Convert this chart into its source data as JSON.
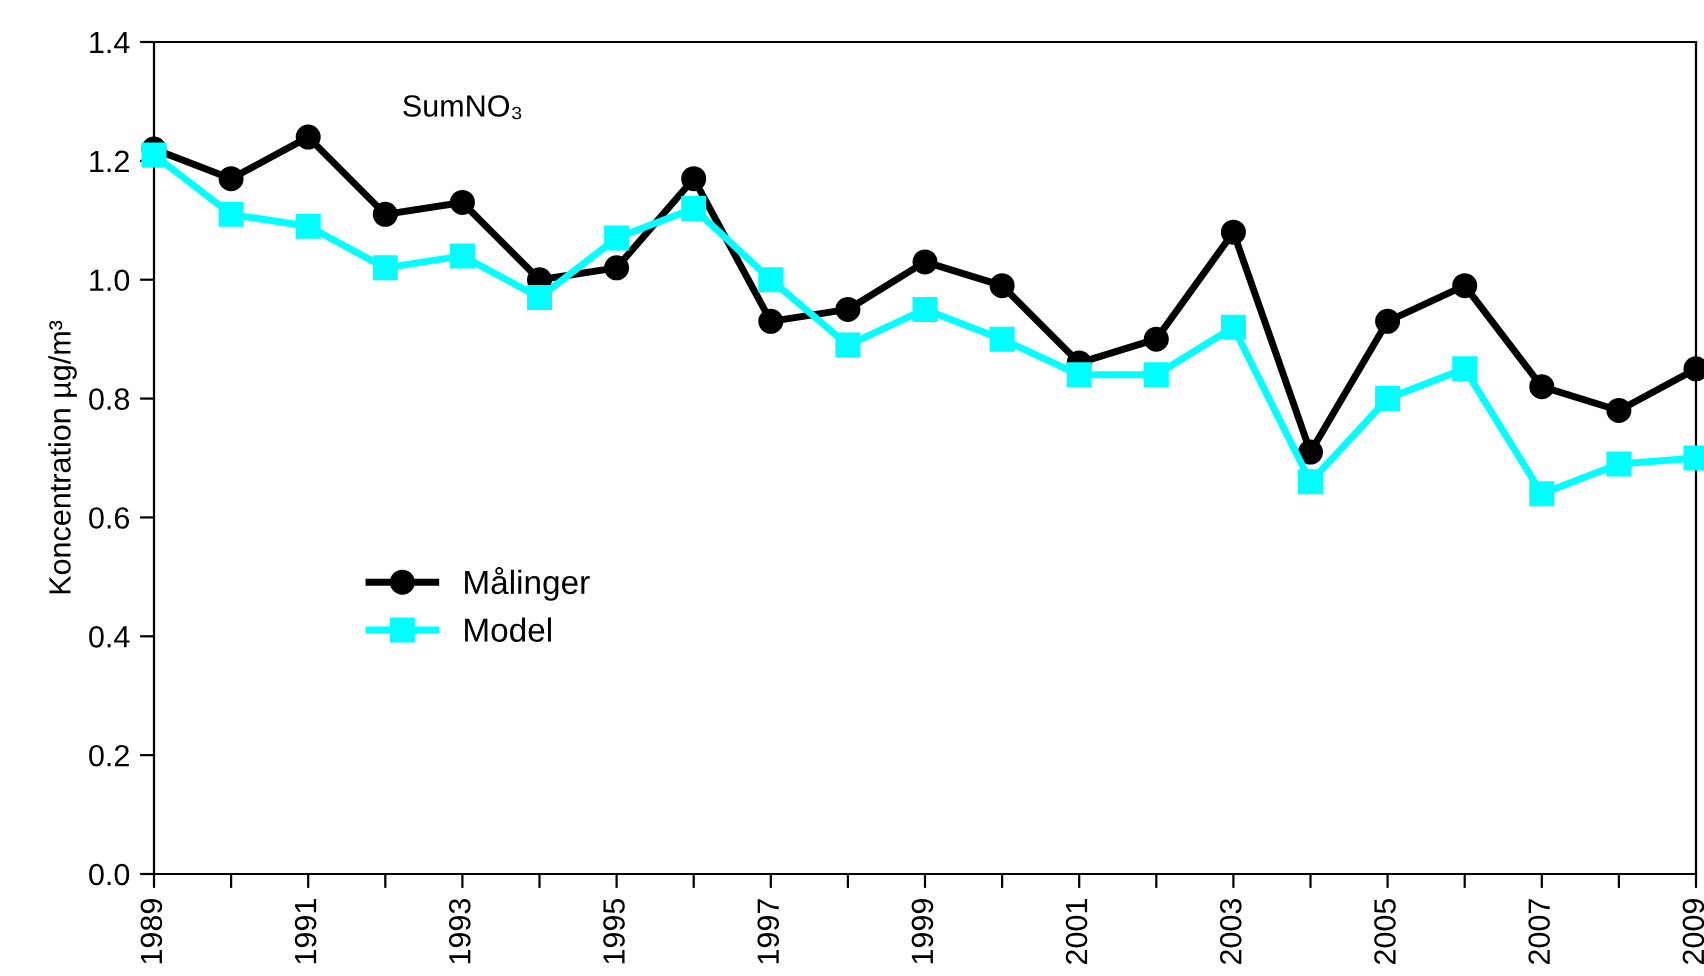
{
  "chart_data": {
    "type": "line",
    "x": [
      1989,
      1990,
      1991,
      1992,
      1993,
      1994,
      1995,
      1996,
      1997,
      1998,
      1999,
      2000,
      2001,
      2002,
      2003,
      2004,
      2005,
      2006,
      2007,
      2008,
      2009
    ],
    "series": [
      {
        "name": "Målinger",
        "color": "#000000",
        "marker": "circle",
        "values": [
          1.22,
          1.17,
          1.24,
          1.11,
          1.13,
          1.0,
          1.02,
          1.17,
          0.93,
          0.95,
          1.03,
          0.99,
          0.86,
          0.9,
          1.08,
          0.71,
          0.93,
          0.99,
          0.82,
          0.78,
          0.85
        ]
      },
      {
        "name": "Model",
        "color": "#00ffff",
        "marker": "square",
        "values": [
          1.21,
          1.11,
          1.09,
          1.02,
          1.04,
          0.97,
          1.07,
          1.12,
          1.0,
          0.89,
          0.95,
          0.9,
          0.84,
          0.84,
          0.92,
          0.66,
          0.8,
          0.85,
          0.64,
          0.69,
          0.7
        ]
      }
    ],
    "ylabel": "Koncentration µg/m³",
    "annotations": [
      "SumNO₃"
    ],
    "xlim": [
      1989,
      2009
    ],
    "xticks": [
      1989,
      {
        "value": 1990,
        "label": null
      },
      1991,
      {
        "value": 1992,
        "label": null
      },
      1993,
      {
        "value": 1994,
        "label": null
      },
      1995,
      {
        "value": 1996,
        "label": null
      },
      1997,
      {
        "value": 1998,
        "label": null
      },
      1999,
      {
        "value": 2000,
        "label": null
      },
      2001,
      {
        "value": 2002,
        "label": null
      },
      2003,
      {
        "value": 2004,
        "label": null
      },
      2005,
      {
        "value": 2006,
        "label": null
      },
      2007,
      {
        "value": 2008,
        "label": null
      },
      2009
    ],
    "ylim": [
      0,
      1.4
    ],
    "yticks": [
      {
        "value": 0,
        "label": "0.0"
      },
      0.2,
      0.4,
      0.6,
      0.8,
      {
        "value": 1,
        "label": "1.0"
      },
      1.2,
      1.4
    ],
    "grid": false,
    "legend": "left",
    "line_style": "solid"
  }
}
